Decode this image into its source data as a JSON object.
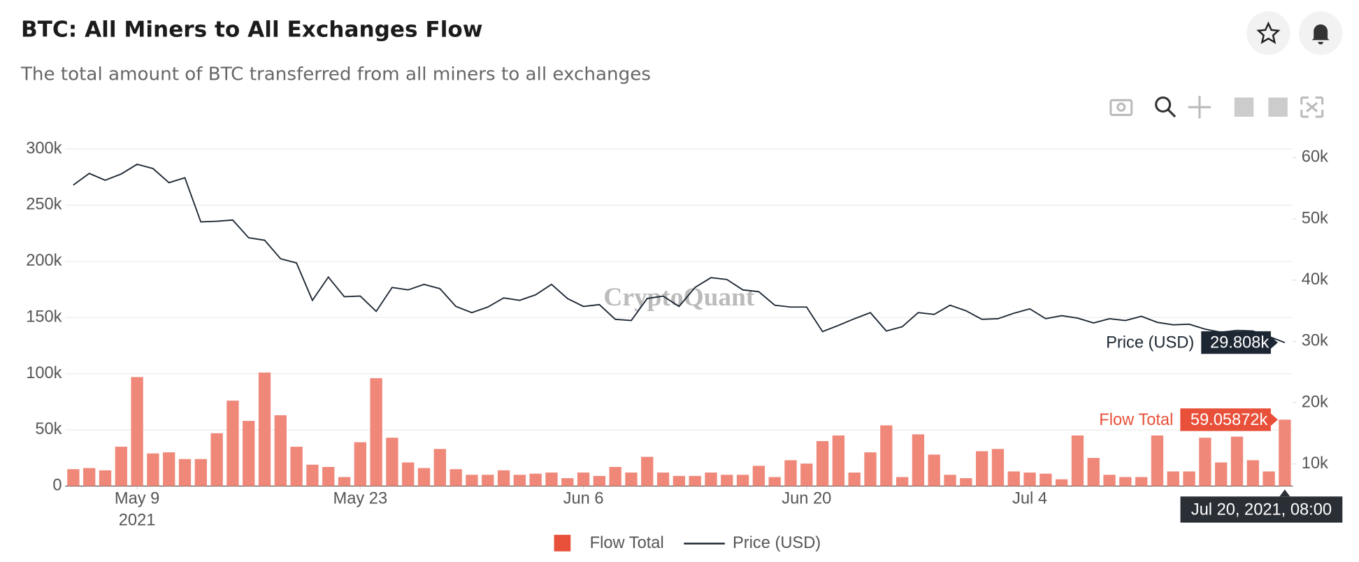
{
  "header": {
    "title": "BTC: All Miners to All Exchanges Flow",
    "subtitle": "The total amount of BTC transferred from all miners to all exchanges"
  },
  "chart_data": {
    "type": "bar-line",
    "watermark": "CryptoQuant",
    "x": [
      "2021-05-05",
      "2021-05-06",
      "2021-05-07",
      "2021-05-08",
      "2021-05-09",
      "2021-05-10",
      "2021-05-11",
      "2021-05-12",
      "2021-05-13",
      "2021-05-14",
      "2021-05-15",
      "2021-05-16",
      "2021-05-17",
      "2021-05-18",
      "2021-05-19",
      "2021-05-20",
      "2021-05-21",
      "2021-05-22",
      "2021-05-23",
      "2021-05-24",
      "2021-05-25",
      "2021-05-26",
      "2021-05-27",
      "2021-05-28",
      "2021-05-29",
      "2021-05-30",
      "2021-05-31",
      "2021-06-01",
      "2021-06-02",
      "2021-06-03",
      "2021-06-04",
      "2021-06-05",
      "2021-06-06",
      "2021-06-07",
      "2021-06-08",
      "2021-06-09",
      "2021-06-10",
      "2021-06-11",
      "2021-06-12",
      "2021-06-13",
      "2021-06-14",
      "2021-06-15",
      "2021-06-16",
      "2021-06-17",
      "2021-06-18",
      "2021-06-19",
      "2021-06-20",
      "2021-06-21",
      "2021-06-22",
      "2021-06-23",
      "2021-06-24",
      "2021-06-25",
      "2021-06-26",
      "2021-06-27",
      "2021-06-28",
      "2021-06-29",
      "2021-06-30",
      "2021-07-01",
      "2021-07-02",
      "2021-07-03",
      "2021-07-04",
      "2021-07-05",
      "2021-07-06",
      "2021-07-07",
      "2021-07-08",
      "2021-07-09",
      "2021-07-10",
      "2021-07-11",
      "2021-07-12",
      "2021-07-13",
      "2021-07-14",
      "2021-07-15",
      "2021-07-16",
      "2021-07-17",
      "2021-07-18",
      "2021-07-19",
      "2021-07-20"
    ],
    "xlim": [
      "2021-05-04T12:00",
      "2021-07-20T12:00"
    ],
    "xticks": [
      {
        "value": "2021-05-09",
        "label": "May 9"
      },
      {
        "value": "2021-05-23",
        "label": "May 23"
      },
      {
        "value": "2021-06-06",
        "label": "Jun 6"
      },
      {
        "value": "2021-06-20",
        "label": "Jun 20"
      },
      {
        "value": "2021-07-04",
        "label": "Jul 4"
      }
    ],
    "x_year_label": "2021",
    "ylim": [
      0,
      300000
    ],
    "yticks": [
      0,
      {
        "value": 50000,
        "label": "50k"
      },
      {
        "value": 100000,
        "label": "100k"
      },
      {
        "value": 150000,
        "label": "150k"
      },
      {
        "value": 200000,
        "label": "200k"
      },
      {
        "value": 250000,
        "label": "250k"
      },
      {
        "value": 300000,
        "label": "300k"
      }
    ],
    "y2lim": [
      6400,
      61400
    ],
    "y2ticks": [
      {
        "value": 10000,
        "label": "10k"
      },
      {
        "value": 20000,
        "label": "20k"
      },
      {
        "value": 30000,
        "label": "30k"
      },
      {
        "value": 40000,
        "label": "40k"
      },
      {
        "value": 50000,
        "label": "50k"
      },
      {
        "value": 60000,
        "label": "60k"
      }
    ],
    "grid": true,
    "series": [
      {
        "name": "Flow Total",
        "type": "bar",
        "color": "#f0887a",
        "legend_color": "#e8503a",
        "values": [
          15000,
          16000,
          14000,
          35000,
          97000,
          29000,
          30000,
          24000,
          24000,
          47000,
          76000,
          58000,
          101000,
          63000,
          35000,
          19000,
          17000,
          8000,
          39000,
          96000,
          43000,
          21000,
          16000,
          33000,
          15000,
          10000,
          10000,
          14000,
          10000,
          11000,
          12000,
          7000,
          12000,
          9000,
          17000,
          12000,
          26000,
          12000,
          9000,
          9000,
          12000,
          10000,
          10000,
          18000,
          8000,
          23000,
          20000,
          40000,
          45000,
          12000,
          30000,
          54000,
          8000,
          46000,
          28000,
          10000,
          7000,
          31000,
          33000,
          13000,
          12000,
          11000,
          6000,
          45000,
          25000,
          10000,
          8000,
          8000,
          45000,
          13000,
          13000,
          43000,
          21000,
          44000,
          23000,
          13000,
          59058.72
        ]
      },
      {
        "name": "Price (USD)",
        "type": "line",
        "axis": "y2",
        "color": "#1d2733",
        "values": [
          55500,
          57400,
          56300,
          57300,
          58900,
          58200,
          55900,
          56700,
          49500,
          49600,
          49800,
          46900,
          46500,
          43500,
          42800,
          36700,
          40500,
          37300,
          37400,
          34900,
          38800,
          38400,
          39300,
          38600,
          35700,
          34700,
          35600,
          37100,
          36700,
          37600,
          39300,
          37000,
          35700,
          36000,
          33600,
          33400,
          37000,
          37400,
          35700,
          38800,
          40400,
          40100,
          38400,
          38100,
          35900,
          35600,
          35600,
          31600,
          32600,
          33700,
          34700,
          31700,
          32400,
          34700,
          34400,
          35900,
          35000,
          33600,
          33700,
          34600,
          35300,
          33700,
          34200,
          33800,
          33000,
          33700,
          33400,
          34100,
          33100,
          32700,
          32800,
          32000,
          31500,
          31800,
          31700,
          30800,
          29808
        ]
      }
    ],
    "hover": {
      "date": "Jul 20, 2021, 08:00",
      "labels": [
        "59.05872k",
        "29.808k"
      ]
    }
  }
}
